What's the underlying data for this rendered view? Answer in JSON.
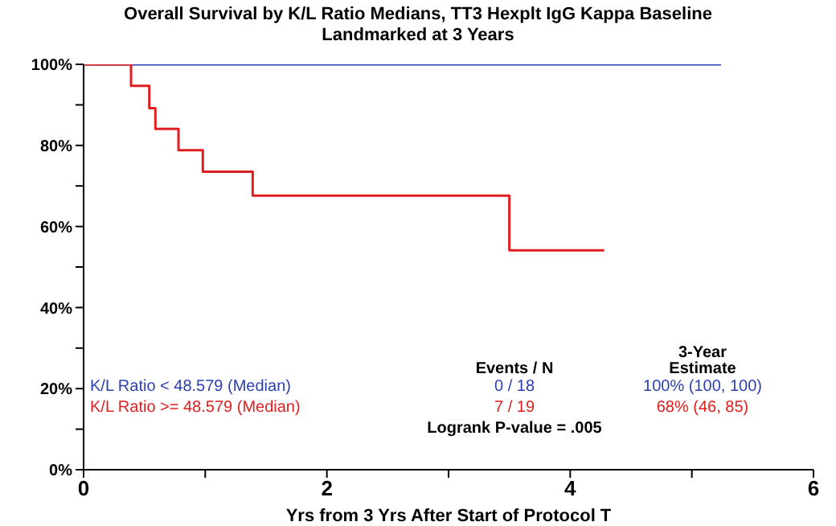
{
  "chart_data": {
    "type": "step",
    "title": "Overall Survival by K/L Ratio Medians, TT3 Hexplt IgG Kappa Baseline",
    "subtitle": "Landmarked at 3 Years",
    "xlabel": "Yrs from 3 Yrs After Start of Protocol T",
    "series": [
      {
        "name": "K/L Ratio < 48.579 (Median)",
        "color": "#2b3fb0",
        "x": [
          0,
          5.24
        ],
        "values": [
          100,
          100
        ]
      },
      {
        "name": "K/L Ratio >= 48.579 (Median)",
        "color": "#e02020",
        "x": [
          0,
          0.39,
          0.54,
          0.59,
          0.78,
          0.98,
          1.39,
          3.5,
          4.28
        ],
        "values": [
          100,
          94.7,
          89.2,
          84.1,
          78.8,
          73.5,
          67.6,
          54.1,
          54.1
        ]
      }
    ],
    "annotations": [
      "3-Year",
      "Events / N",
      "Estimate",
      "0 / 18",
      "100% (100, 100)",
      "7 / 19",
      "68% (46, 85)",
      "Logrank P-value = .005"
    ],
    "xlim": [
      0,
      6
    ],
    "xticks": [
      0,
      {
        "value": 1,
        "label": null
      },
      2,
      {
        "value": 3,
        "label": null
      },
      4,
      {
        "value": 5,
        "label": null
      },
      6
    ],
    "ylim": [
      0,
      100
    ],
    "yticks": [
      {
        "value": 0,
        "label": "0%"
      },
      {
        "value": 10,
        "label": null
      },
      {
        "value": 20,
        "label": "20%"
      },
      {
        "value": 30,
        "label": null
      },
      {
        "value": 40,
        "label": "40%"
      },
      {
        "value": 50,
        "label": null
      },
      {
        "value": 60,
        "label": "60%"
      },
      {
        "value": 70,
        "label": null
      },
      {
        "value": 80,
        "label": "80%"
      },
      {
        "value": 90,
        "label": null
      },
      {
        "value": 100,
        "label": "100%"
      }
    ],
    "grid": false,
    "marker": "none",
    "line_style": "solid"
  }
}
